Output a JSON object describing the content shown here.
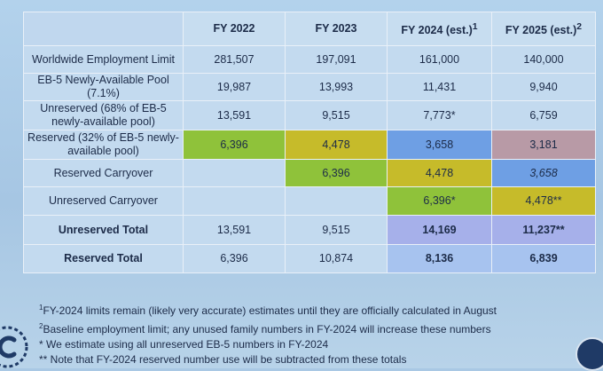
{
  "table": {
    "headers": [
      "",
      "FY 2022",
      "FY 2023",
      "FY 2024 (est.)",
      "FY 2025 (est.)"
    ],
    "header_sups": [
      "",
      "",
      "",
      "1",
      "2"
    ],
    "rows": [
      {
        "label": "Worldwide Employment Limit",
        "values": [
          "281,507",
          "197,091",
          "161,000",
          "140,000"
        ]
      },
      {
        "label": "EB-5 Newly-Available Pool (7.1%)",
        "values": [
          "19,987",
          "13,993",
          "11,431",
          "9,940"
        ]
      },
      {
        "label": "Unreserved (68% of EB-5 newly-available pool)",
        "values": [
          "13,591",
          "9,515",
          "7,773*",
          "6,759"
        ]
      },
      {
        "label": "Reserved (32% of EB-5 newly-available pool)",
        "values": [
          "6,396",
          "4,478",
          "3,658",
          "3,181"
        ]
      },
      {
        "label": "Reserved Carryover",
        "values": [
          "",
          "6,396",
          "4,478",
          "3,658"
        ]
      },
      {
        "label": "Unreserved Carryover",
        "values": [
          "",
          "",
          "6,396*",
          "4,478**"
        ]
      },
      {
        "label": "Unreserved Total",
        "values": [
          "13,591",
          "9,515",
          "14,169",
          "11,237**"
        ]
      },
      {
        "label": "Reserved Total",
        "values": [
          "6,396",
          "10,874",
          "8,136",
          "6,839"
        ]
      }
    ]
  },
  "footnotes": [
    {
      "mark": "1",
      "text": "FY-2024 limits remain (likely very accurate) estimates until they are officially calculated in August"
    },
    {
      "mark": "2",
      "text": "Baseline employment limit; any unused family numbers in FY-2024 will increase these numbers"
    },
    {
      "mark": "*",
      "text": " We estimate using all unreserved EB-5 numbers in FY-2024"
    },
    {
      "mark": "**",
      "text": " Note that FY-2024 reserved number use will be subtracted from these totals"
    }
  ],
  "colors": {
    "background": "#a9c8e4",
    "cell": "#c3daef",
    "green": "#8fc23a",
    "olive": "#c6bb2a",
    "blue": "#6e9fe4",
    "mauve": "#b89aa6",
    "light_blue": "#a7c3ef",
    "periwinkle": "#a6b0ea"
  },
  "icons": {
    "logo": "c-logo-icon",
    "seal": "seal-icon"
  }
}
